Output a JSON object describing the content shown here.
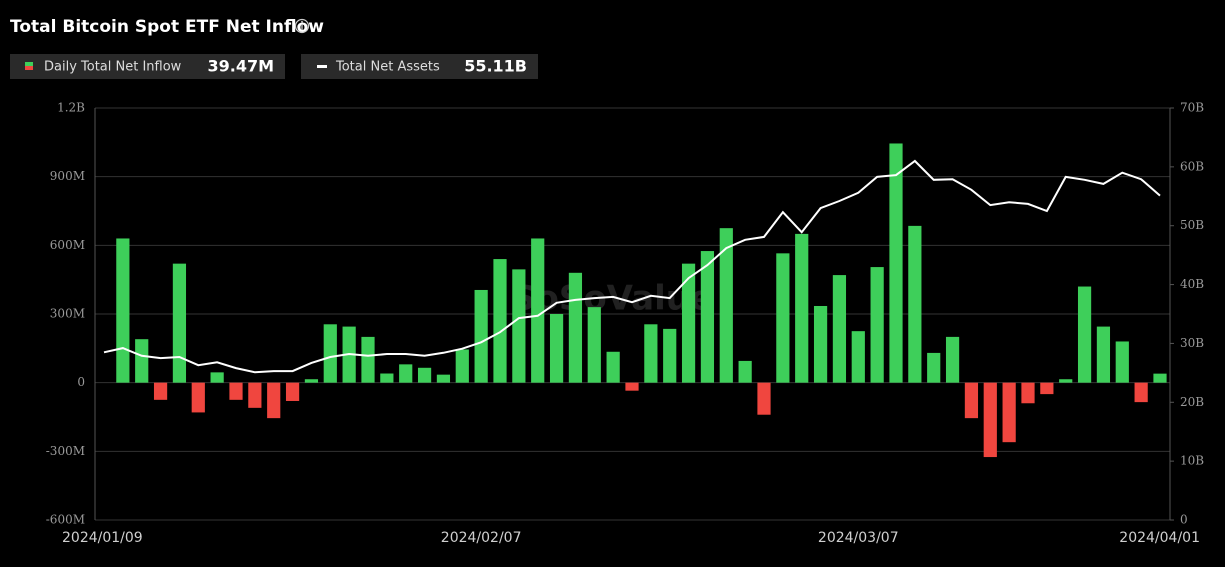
{
  "chart_data": {
    "type": "bar",
    "title": "Total Bitcoin Spot ETF Net Inflow",
    "watermark": "SoSoValue",
    "categories": [
      "2024/01/09",
      null,
      null,
      null,
      null,
      null,
      null,
      null,
      null,
      null,
      null,
      null,
      null,
      null,
      null,
      null,
      null,
      null,
      null,
      null,
      "2024/02/07",
      null,
      null,
      null,
      null,
      null,
      null,
      null,
      null,
      null,
      null,
      null,
      null,
      null,
      null,
      null,
      null,
      null,
      null,
      null,
      "2024/03/07",
      null,
      null,
      null,
      null,
      null,
      null,
      null,
      null,
      null,
      null,
      null,
      null,
      null,
      null,
      null,
      "2024/04/01"
    ],
    "series": [
      {
        "name": "Daily Total Net Inflow",
        "current_value_label": "39.47M",
        "color": "#3ecf5a",
        "negative_color": "#f0463f",
        "values": [
          null,
          630,
          190,
          -75,
          520,
          -130,
          45,
          -75,
          -110,
          -155,
          -80,
          15,
          255,
          245,
          200,
          40,
          80,
          65,
          35,
          145,
          405,
          540,
          495,
          630,
          300,
          480,
          330,
          135,
          -35,
          255,
          235,
          520,
          575,
          675,
          95,
          -140,
          565,
          650,
          335,
          470,
          225,
          505,
          1045,
          685,
          130,
          200,
          -155,
          -325,
          -260,
          -90,
          -50,
          15,
          420,
          245,
          180,
          -85,
          39.47
        ]
      },
      {
        "name": "Total Net Assets",
        "current_value_label": "55.11B",
        "color": "#ffffff",
        "axis": "y2",
        "values": [
          28.5,
          29.2,
          27.9,
          27.5,
          27.7,
          26.3,
          26.8,
          25.8,
          25.1,
          25.3,
          25.3,
          26.7,
          27.7,
          28.2,
          27.9,
          28.2,
          28.2,
          27.9,
          28.4,
          29.1,
          30.2,
          31.9,
          34.3,
          34.7,
          36.9,
          37.4,
          37.7,
          37.9,
          37.0,
          38.1,
          37.7,
          41.1,
          43.3,
          46.2,
          47.6,
          48.1,
          52.3,
          48.9,
          53.0,
          54.2,
          55.6,
          58.3,
          58.6,
          61.0,
          57.8,
          57.9,
          56.1,
          53.5,
          54.0,
          53.7,
          52.5,
          58.3,
          57.8,
          57.1,
          59.0,
          57.9,
          55.11
        ]
      }
    ],
    "ylim": [
      -600,
      1200
    ],
    "yticks": [
      {
        "value": -600,
        "label": "-600M"
      },
      {
        "value": -300,
        "label": "-300M"
      },
      0,
      {
        "value": 300,
        "label": "300M"
      },
      {
        "value": 600,
        "label": "600M"
      },
      {
        "value": 900,
        "label": "900M"
      },
      {
        "value": 1200,
        "label": "1.2B"
      }
    ],
    "y2lim": [
      0,
      70
    ],
    "y2ticks": [
      0,
      {
        "value": 10,
        "label": "10B"
      },
      {
        "value": 20,
        "label": "20B"
      },
      {
        "value": 30,
        "label": "30B"
      },
      {
        "value": 40,
        "label": "40B"
      },
      {
        "value": 50,
        "label": "50B"
      },
      {
        "value": 60,
        "label": "60B"
      },
      {
        "value": 70,
        "label": "70B"
      }
    ],
    "grid": true
  }
}
